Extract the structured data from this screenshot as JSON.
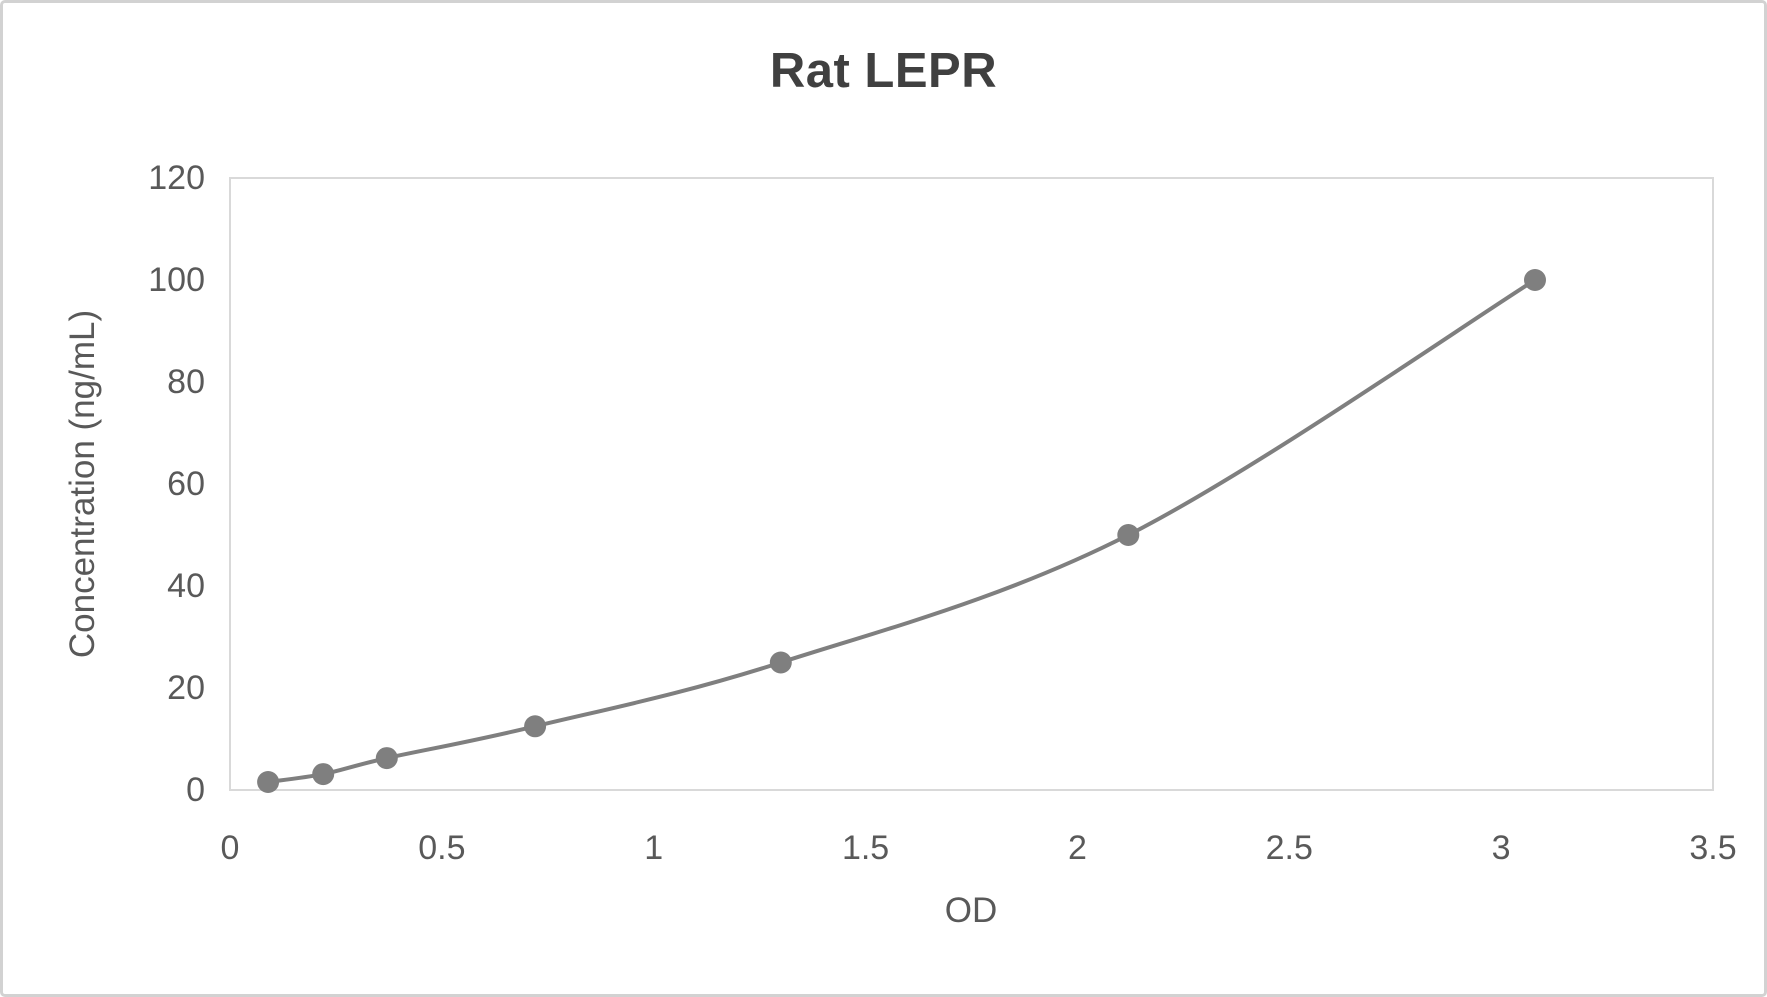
{
  "chart_data": {
    "type": "line",
    "title": "Rat LEPR",
    "xlabel": "OD",
    "ylabel": "Concentration (ng/mL)",
    "x": [
      0.09,
      0.22,
      0.37,
      0.72,
      1.3,
      2.12,
      3.08
    ],
    "y": [
      1.563,
      3.125,
      6.25,
      12.5,
      25,
      50,
      100
    ],
    "xlim": [
      0,
      3.5
    ],
    "ylim": [
      0,
      120
    ],
    "x_ticks": [
      0,
      0.5,
      1,
      1.5,
      2,
      2.5,
      3,
      3.5
    ],
    "y_ticks": [
      0,
      20,
      40,
      60,
      80,
      100,
      120
    ],
    "grid": false,
    "legend_position": "none",
    "line_smooth": true,
    "colors": {
      "series": "#7f7f7f",
      "marker": "#7f7f7f",
      "plot_border": "#d9d9d9",
      "tick_text": "#595959",
      "title_text": "#404040",
      "background": "#ffffff",
      "frame_border": "#d2d2d2"
    }
  }
}
